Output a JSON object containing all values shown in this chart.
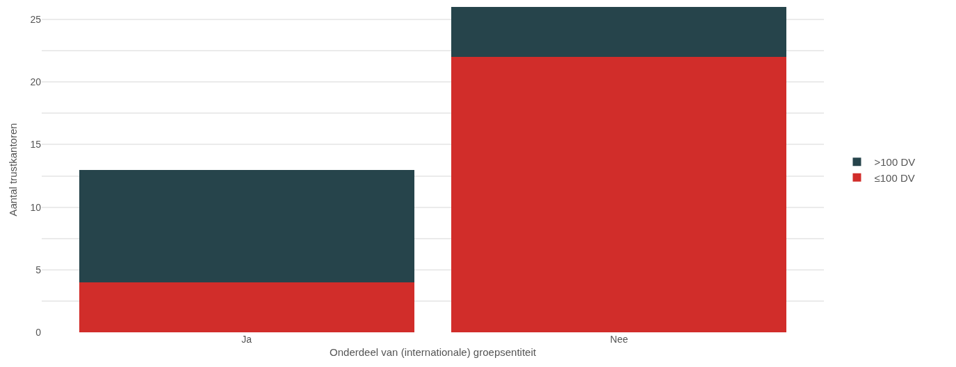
{
  "chart_data": {
    "type": "bar",
    "stacked": true,
    "xlabel": "Onderdeel van (internationale) groepsentiteit",
    "ylabel": "Aantal trustkantoren",
    "categories": [
      "Ja",
      "Nee"
    ],
    "series": [
      {
        "name": "≤100 DV",
        "color": "#d12d2a",
        "values": [
          4,
          22
        ]
      },
      {
        "name": ">100 DV",
        "color": "#26444b",
        "values": [
          9,
          4
        ]
      }
    ],
    "ylim": [
      0,
      26
    ],
    "yticks": [
      0,
      {
        "value": 2.5,
        "label": null
      },
      5,
      {
        "value": 7.5,
        "label": null
      },
      10,
      {
        "value": 12.5,
        "label": null
      },
      15,
      {
        "value": 17.5,
        "label": null
      },
      20,
      {
        "value": 22.5,
        "label": null
      },
      25
    ],
    "grid": "y",
    "legend": "right"
  }
}
